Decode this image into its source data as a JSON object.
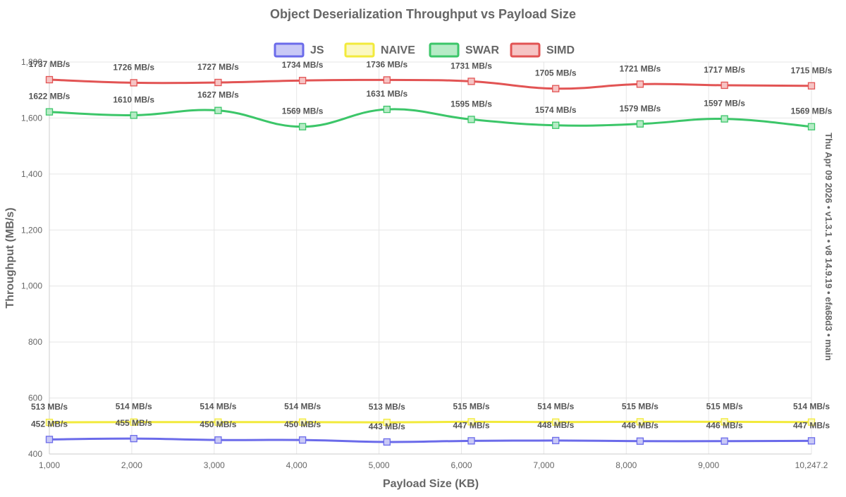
{
  "chart_data": {
    "type": "line",
    "title": "Object Deserialization Throughput vs Payload Size",
    "xlabel": "Payload Size (KB)",
    "ylabel": "Throughput (MB/s)",
    "side_label": "Thu Apr 09 2026 • v1.3.1 • v8 14.9.19 • efa68d3 • main",
    "legend_position": "top-center",
    "grid": true,
    "xlim": [
      1000,
      10247.2
    ],
    "ylim": [
      400,
      1800
    ],
    "x_ticks": [
      1000,
      2000,
      3000,
      4000,
      5000,
      6000,
      7000,
      8000,
      9000,
      10247.2
    ],
    "x_tick_labels": [
      "1,000",
      "2,000",
      "3,000",
      "4,000",
      "5,000",
      "6,000",
      "7,000",
      "8,000",
      "9,000",
      "10,247.2"
    ],
    "y_ticks": [
      400,
      600,
      800,
      1000,
      1200,
      1400,
      1600,
      1800
    ],
    "y_tick_labels": [
      "400",
      "600",
      "800",
      "1,000",
      "1,200",
      "1,400",
      "1,600",
      "1,800"
    ],
    "x": [
      1000,
      2024,
      3048,
      4072,
      5096,
      6120,
      7144,
      8168,
      9192,
      10247.2
    ],
    "value_suffix": " MB/s",
    "series": [
      {
        "name": "JS",
        "color": "#6b6bea",
        "fill": "#c9c9f6",
        "values": [
          452,
          455,
          450,
          450,
          443,
          447,
          448,
          446,
          446,
          447
        ]
      },
      {
        "name": "NAIVE",
        "color": "#f2ea3c",
        "fill": "#fbf8c1",
        "values": [
          513,
          514,
          514,
          514,
          513,
          515,
          514,
          515,
          515,
          514
        ]
      },
      {
        "name": "SWAR",
        "color": "#3cc669",
        "fill": "#b6ebc6",
        "values": [
          1622,
          1610,
          1627,
          1569,
          1631,
          1595,
          1574,
          1579,
          1597,
          1569
        ]
      },
      {
        "name": "SIMD",
        "color": "#e25454",
        "fill": "#f6c4c4",
        "values": [
          1737,
          1726,
          1727,
          1734,
          1736,
          1731,
          1705,
          1721,
          1717,
          1715
        ]
      }
    ]
  }
}
